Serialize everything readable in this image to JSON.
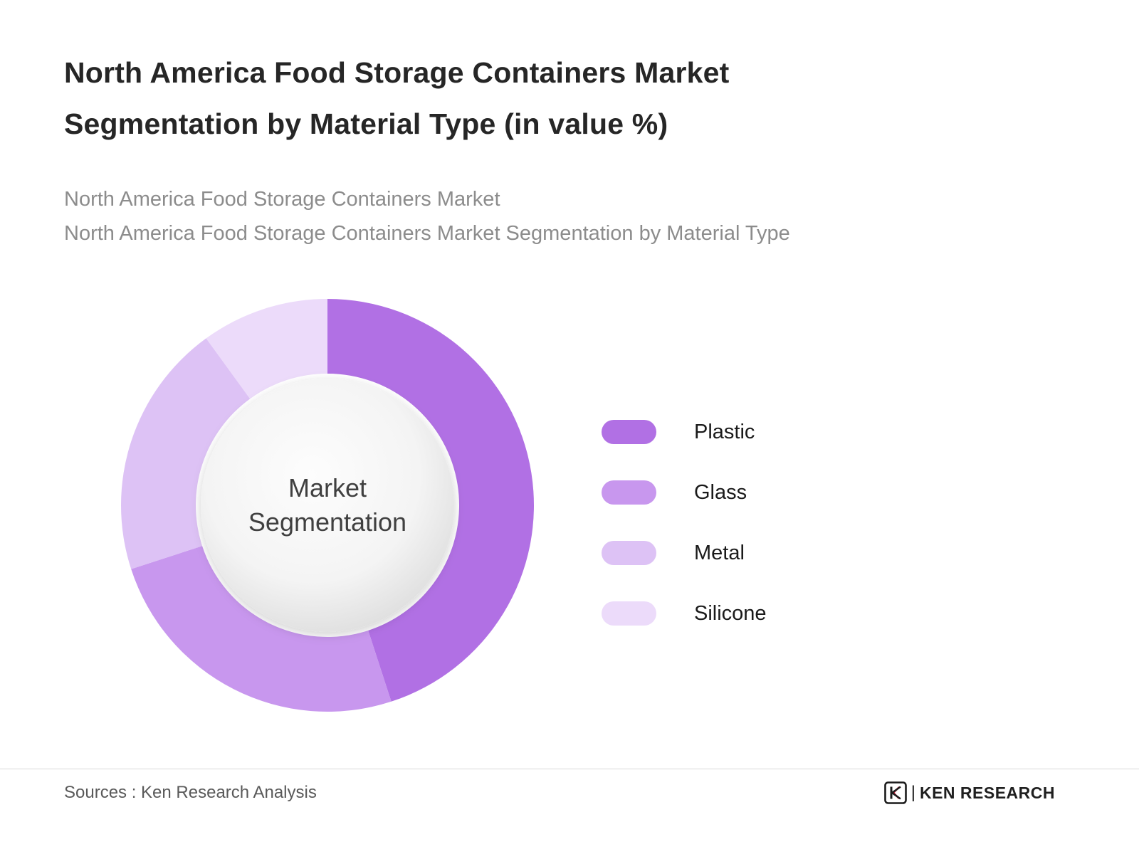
{
  "page": {
    "title": "North America Food Storage Containers Market Segmentation by Material Type (in value %)",
    "subtitle_line1": "North America Food Storage Containers Market",
    "subtitle_line2": "North America Food Storage Containers Market Segmentation by Material Type",
    "source": "Sources : Ken Research Analysis",
    "brand_name": "KEN RESEARCH"
  },
  "chart_data": {
    "type": "pie",
    "variant": "donut",
    "title": "North America Food Storage Containers Market Segmentation by Material Type (in value %)",
    "center_label": "Market Segmentation",
    "categories": [
      "Plastic",
      "Glass",
      "Metal",
      "Silicone"
    ],
    "values": [
      45,
      25,
      20,
      10
    ],
    "unit": "percent_of_value",
    "colors": [
      "#b170e4",
      "#c897ee",
      "#ddc2f5",
      "#ecdbfa"
    ],
    "start_angle_deg": 0,
    "direction": "clockwise",
    "legend_position": "right",
    "data_labels_shown": false
  },
  "legend": {
    "items": [
      {
        "label": "Plastic",
        "color": "#b170e4"
      },
      {
        "label": "Glass",
        "color": "#c897ee"
      },
      {
        "label": "Metal",
        "color": "#ddc2f5"
      },
      {
        "label": "Silicone",
        "color": "#ecdbfa"
      }
    ]
  }
}
